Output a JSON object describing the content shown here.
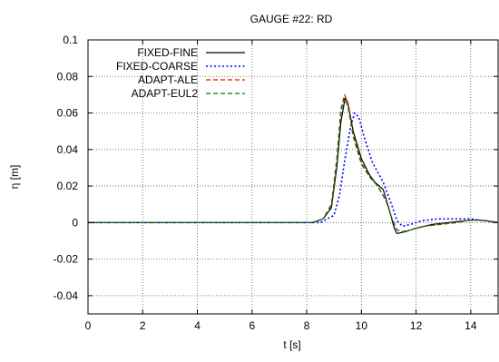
{
  "chart_data": {
    "type": "line",
    "title": "GAUGE #22: RD",
    "xlabel": "t [s]",
    "ylabel": "η [m]",
    "xlim": [
      0,
      15
    ],
    "ylim": [
      -0.05,
      0.1
    ],
    "x_ticks": [
      0,
      2,
      4,
      6,
      8,
      10,
      12,
      14
    ],
    "x_tick_labels": [
      "0",
      "2",
      "4",
      "6",
      "8",
      "10",
      "12",
      "14"
    ],
    "y_ticks": [
      -0.04,
      -0.02,
      0,
      0.02,
      0.04,
      0.06,
      0.08,
      0.1
    ],
    "y_tick_labels": [
      "-0.04",
      "-0.02",
      "0",
      "0.02",
      "0.04",
      "0.06",
      "0.08",
      "0.1"
    ],
    "grid": true,
    "legend_position": "top-left",
    "series": [
      {
        "name": "FIXED-FINE",
        "color": "#000000",
        "dash": "solid",
        "x": [
          0,
          8.2,
          8.6,
          8.9,
          9.1,
          9.25,
          9.4,
          9.5,
          9.7,
          10.0,
          10.3,
          10.5,
          10.8,
          11.0,
          11.2,
          11.3,
          11.6,
          12.0,
          12.6,
          13.2,
          13.8,
          14.2,
          14.6,
          15.0
        ],
        "y": [
          0,
          0,
          0.002,
          0.008,
          0.03,
          0.055,
          0.068,
          0.066,
          0.05,
          0.035,
          0.026,
          0.022,
          0.018,
          0.008,
          -0.003,
          -0.006,
          -0.005,
          -0.003,
          -0.001,
          0,
          0.001,
          0.0015,
          0.001,
          0
        ]
      },
      {
        "name": "FIXED-COARSE",
        "color": "#0000ff",
        "dash": "dotted",
        "x": [
          0,
          8.5,
          9.0,
          9.2,
          9.4,
          9.6,
          9.75,
          9.9,
          10.1,
          10.4,
          10.8,
          11.1,
          11.3,
          11.5,
          11.8,
          12.2,
          12.8,
          13.4,
          14.0,
          14.5,
          15.0
        ],
        "y": [
          0,
          0,
          0.004,
          0.015,
          0.035,
          0.052,
          0.06,
          0.058,
          0.047,
          0.033,
          0.022,
          0.01,
          0.001,
          -0.002,
          -0.001,
          0.001,
          0.002,
          0.002,
          0.002,
          0.001,
          0
        ]
      },
      {
        "name": "ADAPT-ALE",
        "color": "#ff0000",
        "dash": "dashed",
        "x": [
          0,
          8.2,
          8.6,
          8.9,
          9.1,
          9.25,
          9.38,
          9.5,
          9.7,
          10.0,
          10.3,
          10.6,
          10.9,
          11.1,
          11.3,
          11.5,
          11.8,
          12.3,
          12.9,
          13.5,
          14.0,
          14.5,
          15.0
        ],
        "y": [
          0,
          0,
          0.002,
          0.01,
          0.035,
          0.062,
          0.07,
          0.066,
          0.048,
          0.033,
          0.025,
          0.02,
          0.012,
          0.003,
          -0.004,
          -0.005,
          -0.004,
          -0.002,
          -0.001,
          0,
          0.0015,
          0.001,
          0
        ]
      },
      {
        "name": "ADAPT-EUL2",
        "color": "#008000",
        "dash": "dashed",
        "x": [
          0,
          8.2,
          8.6,
          8.9,
          9.1,
          9.25,
          9.36,
          9.5,
          9.7,
          10.0,
          10.3,
          10.6,
          10.9,
          11.1,
          11.3,
          11.5,
          11.8,
          12.3,
          12.9,
          13.5,
          14.0,
          14.5,
          15.0
        ],
        "y": [
          0,
          0,
          0.002,
          0.009,
          0.033,
          0.06,
          0.068,
          0.064,
          0.047,
          0.032,
          0.025,
          0.02,
          0.012,
          0.003,
          -0.004,
          -0.005,
          -0.004,
          -0.002,
          -0.001,
          0,
          0.0015,
          0.001,
          0
        ]
      }
    ]
  }
}
